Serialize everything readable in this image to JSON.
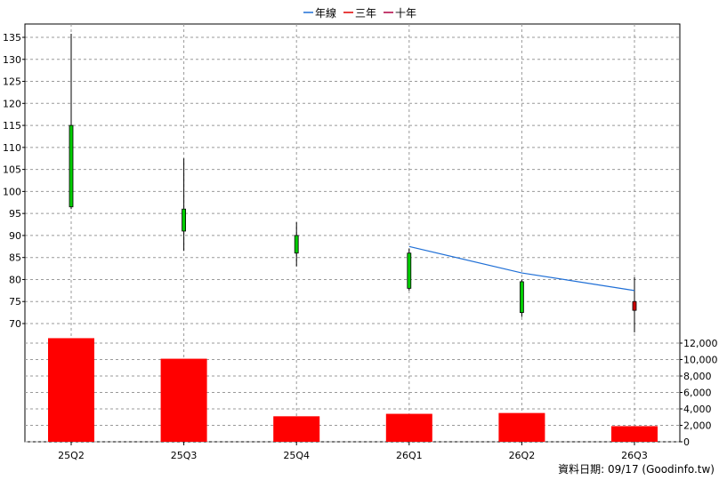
{
  "legend": [
    {
      "label": "年線",
      "color": "#1f6fd6"
    },
    {
      "label": "三年",
      "color": "#e00000"
    },
    {
      "label": "十年",
      "color": "#b00040"
    }
  ],
  "footer": "資料日期: 09/17  (Goodinfo.tw)",
  "chart_data": [
    {
      "type": "candlestick",
      "categories": [
        "25Q2",
        "25Q3",
        "25Q4",
        "26Q1",
        "26Q2",
        "26Q3"
      ],
      "ohlc": [
        {
          "open": 96.5,
          "high": 135.8,
          "low": 96.0,
          "close": 115.0,
          "color": "#00cc00"
        },
        {
          "open": 91.0,
          "high": 107.5,
          "low": 86.5,
          "close": 96.0,
          "color": "#00cc00"
        },
        {
          "open": 86.0,
          "high": 93.0,
          "low": 83.0,
          "close": 90.0,
          "color": "#00cc00"
        },
        {
          "open": 78.0,
          "high": 87.0,
          "low": 77.5,
          "close": 86.0,
          "color": "#00cc00"
        },
        {
          "open": 72.5,
          "high": 80.0,
          "low": 71.5,
          "close": 79.5,
          "color": "#00cc00"
        },
        {
          "open": 73.0,
          "high": 80.5,
          "low": 68.0,
          "close": 75.0,
          "color": "#cc0000"
        }
      ],
      "series": [
        {
          "name": "年線",
          "color": "#1f6fd6",
          "values": [
            null,
            null,
            null,
            87.5,
            81.5,
            77.5
          ]
        }
      ],
      "ylim": [
        67,
        138
      ],
      "yticks": [
        70,
        75,
        80,
        85,
        90,
        95,
        100,
        105,
        110,
        115,
        120,
        125,
        130,
        135
      ],
      "grid": true
    },
    {
      "type": "bar",
      "categories": [
        "25Q2",
        "25Q3",
        "25Q4",
        "26Q1",
        "26Q2",
        "26Q3"
      ],
      "values": [
        12600,
        10100,
        3100,
        3400,
        3500,
        1900
      ],
      "color": "#ff0000",
      "ylim": [
        0,
        13000
      ],
      "yticks": [
        "0",
        "2,000",
        "4,000",
        "6,000",
        "8,000",
        "10,000",
        "12,000"
      ],
      "ytick_values": [
        0,
        2000,
        4000,
        6000,
        8000,
        10000,
        12000
      ],
      "grid": true
    }
  ]
}
